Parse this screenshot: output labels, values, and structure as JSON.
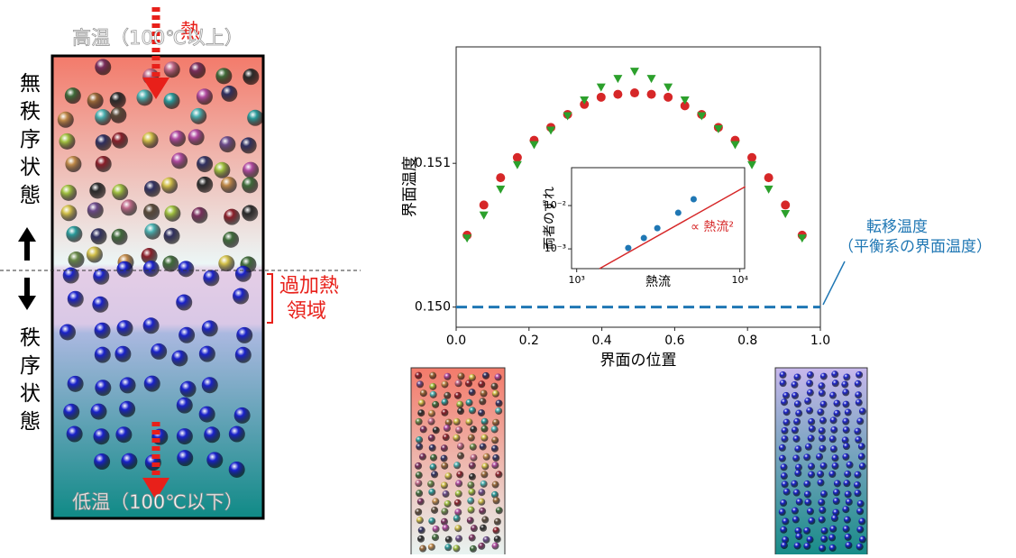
{
  "diagram": {
    "top_label": "高温（100℃以上）",
    "bottom_label": "低温（100℃以下）",
    "heat": "熱",
    "disordered": "無秩序状態",
    "ordered": "秩序状態",
    "superheated": [
      "過加熱",
      "領域"
    ],
    "transition": [
      "転移温度",
      "（平衡系の界面温度）"
    ]
  },
  "chart_data": [
    {
      "type": "scatter",
      "xlabel": "界面の位置",
      "ylabel": "界面温度",
      "x": [
        0.03,
        0.076,
        0.122,
        0.168,
        0.214,
        0.26,
        0.306,
        0.352,
        0.398,
        0.444,
        0.49,
        0.536,
        0.582,
        0.628,
        0.674,
        0.72,
        0.766,
        0.812,
        0.858,
        0.904,
        0.95
      ],
      "series": [
        {
          "color": "#d62728",
          "marker": "circle",
          "values": [
            0.1505,
            0.15071,
            0.1509,
            0.15104,
            0.15116,
            0.15125,
            0.15134,
            0.15141,
            0.15146,
            0.15148,
            0.15149,
            0.15148,
            0.15146,
            0.1514,
            0.15134,
            0.15125,
            0.15116,
            0.15104,
            0.1509,
            0.15071,
            0.1505
          ]
        },
        {
          "color": "#2ca02c",
          "marker": "triangle",
          "values": [
            0.15048,
            0.15064,
            0.15082,
            0.15099,
            0.15113,
            0.15123,
            0.15133,
            0.15144,
            0.15153,
            0.15159,
            0.15164,
            0.15159,
            0.15153,
            0.15144,
            0.15133,
            0.15124,
            0.15113,
            0.15099,
            0.15082,
            0.15065,
            0.15048
          ]
        }
      ],
      "hline": 0.15,
      "hline_color": "#1f77b4",
      "xlim": [
        0,
        1
      ],
      "ylim": [
        0.14986,
        0.15181
      ],
      "xticks": [
        {
          "value": 0,
          "label": "0.0"
        },
        {
          "value": 0.2,
          "label": "0.2"
        },
        {
          "value": 0.4,
          "label": "0.4"
        },
        {
          "value": 0.6,
          "label": "0.6"
        },
        {
          "value": 0.8,
          "label": "0.8"
        },
        {
          "value": 1,
          "label": "1.0"
        }
      ],
      "yticks": [
        {
          "value": 0.15,
          "label": "0.150"
        },
        {
          "value": 0.151,
          "label": "0.151"
        }
      ]
    },
    {
      "type": "scatter",
      "xlabel": "熱流",
      "ylabel": "両者のずれ",
      "log_x": true,
      "log_y": true,
      "annotation": "∝ 熱流²",
      "series": [
        {
          "color": "#1f77b4",
          "marker": "circle",
          "x": [
            2070,
            2580,
            3120,
            4190,
            5210
          ],
          "values": [
            0.00105,
            0.00178,
            0.00301,
            0.00681,
            0.014
          ]
        },
        {
          "color": "#d62728",
          "marker": "line",
          "x": [
            1380,
            10800
          ],
          "values": [
            0.00035,
            0.0274
          ]
        }
      ],
      "xlim": [
        930,
        10700
      ],
      "ylim": [
        0.00035,
        0.075
      ],
      "xticks": [
        {
          "value": 1000,
          "label": "10³"
        },
        {
          "value": 10000,
          "label": "10⁴"
        }
      ],
      "yticks": [
        {
          "value": 0.001,
          "label": "10⁻³"
        },
        {
          "value": 0.01,
          "label": "10⁻²"
        }
      ]
    }
  ]
}
